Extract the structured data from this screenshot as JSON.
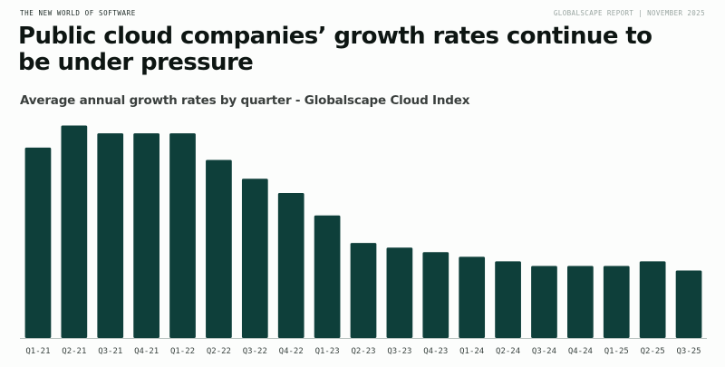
{
  "header": {
    "kicker": "THE NEW WORLD OF SOFTWARE",
    "report": "GLOBALSCAPE REPORT | NOVEMBER 2025",
    "title": "Public cloud companies’ growth rates continue to be under pressure"
  },
  "colors": {
    "bar": "#0e3f3a",
    "axis": "#b8c2bf"
  },
  "chart_data": {
    "type": "bar",
    "title": "Average annual growth rates by quarter - Globalscape Cloud Index",
    "xlabel": "",
    "ylabel": "",
    "ylim": [
      0,
      47
    ],
    "grid": false,
    "categories": [
      "Q1-21",
      "Q2-21",
      "Q3-21",
      "Q4-21",
      "Q1-22",
      "Q2-22",
      "Q3-22",
      "Q4-22",
      "Q1-23",
      "Q2-23",
      "Q3-23",
      "Q4-23",
      "Q1-24",
      "Q2-24",
      "Q3-24",
      "Q4-24",
      "Q1-25",
      "Q2-25",
      "Q3-25"
    ],
    "values": [
      41.5,
      46.3,
      44.6,
      44.6,
      44.6,
      38.8,
      34.7,
      31.6,
      26.7,
      20.7,
      19.7,
      18.7,
      17.7,
      16.7,
      15.7,
      15.7,
      15.7,
      16.7,
      14.7
    ]
  }
}
